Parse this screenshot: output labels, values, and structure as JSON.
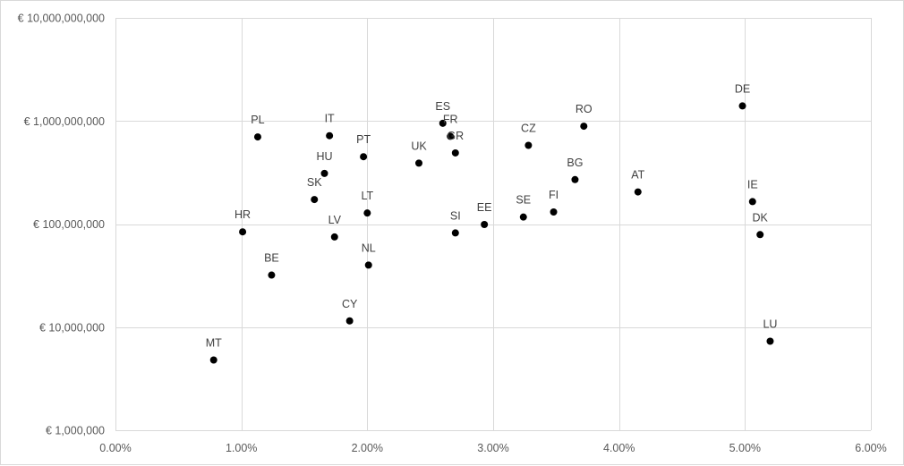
{
  "chart_data": {
    "type": "scatter",
    "title": "",
    "xlabel": "",
    "ylabel": "",
    "x_scale": "linear",
    "y_scale": "log",
    "xlim": [
      0.0,
      0.06
    ],
    "ylim": [
      1000000,
      10000000000
    ],
    "grid": true,
    "legend": "none",
    "x_ticks": [
      "0.00%",
      "1.00%",
      "2.00%",
      "3.00%",
      "4.00%",
      "5.00%",
      "6.00%"
    ],
    "x_tick_values": [
      0.0,
      0.01,
      0.02,
      0.03,
      0.04,
      0.05,
      0.06
    ],
    "y_ticks": [
      "€ 1,000,000",
      "€ 10,000,000",
      "€ 100,000,000",
      "€ 1,000,000,000",
      "€ 10,000,000,000"
    ],
    "y_tick_values": [
      1000000,
      10000000,
      100000000,
      1000000000,
      10000000000
    ],
    "colors": {
      "marker": "#000000",
      "grid": "#d9d9d9",
      "label": "#404040"
    },
    "points": [
      {
        "label": "MT",
        "x": 0.0078,
        "y": 4800000
      },
      {
        "label": "HR",
        "x": 0.0101,
        "y": 84000000
      },
      {
        "label": "PL",
        "x": 0.0113,
        "y": 700000000
      },
      {
        "label": "BE",
        "x": 0.0124,
        "y": 32000000
      },
      {
        "label": "SK",
        "x": 0.0158,
        "y": 173000000
      },
      {
        "label": "HU",
        "x": 0.0166,
        "y": 310000000
      },
      {
        "label": "IT",
        "x": 0.017,
        "y": 720000000
      },
      {
        "label": "LV",
        "x": 0.0174,
        "y": 75000000
      },
      {
        "label": "CY",
        "x": 0.0186,
        "y": 11500000
      },
      {
        "label": "PT",
        "x": 0.0197,
        "y": 450000000
      },
      {
        "label": "LT",
        "x": 0.02,
        "y": 128000000
      },
      {
        "label": "NL",
        "x": 0.0201,
        "y": 40000000
      },
      {
        "label": "UK",
        "x": 0.0241,
        "y": 390000000
      },
      {
        "label": "ES",
        "x": 0.026,
        "y": 950000000
      },
      {
        "label": "FR",
        "x": 0.0266,
        "y": 710000000
      },
      {
        "label": "GR",
        "x": 0.027,
        "y": 490000000
      },
      {
        "label": "SI",
        "x": 0.027,
        "y": 82000000
      },
      {
        "label": "EE",
        "x": 0.0293,
        "y": 99000000
      },
      {
        "label": "SE",
        "x": 0.0324,
        "y": 117000000
      },
      {
        "label": "CZ",
        "x": 0.0328,
        "y": 580000000
      },
      {
        "label": "FI",
        "x": 0.0348,
        "y": 131000000
      },
      {
        "label": "BG",
        "x": 0.0365,
        "y": 270000000
      },
      {
        "label": "RO",
        "x": 0.0372,
        "y": 890000000
      },
      {
        "label": "AT",
        "x": 0.0415,
        "y": 205000000
      },
      {
        "label": "DE",
        "x": 0.0498,
        "y": 1400000000
      },
      {
        "label": "IE",
        "x": 0.0506,
        "y": 165000000
      },
      {
        "label": "DK",
        "x": 0.0512,
        "y": 79000000
      },
      {
        "label": "LU",
        "x": 0.052,
        "y": 7300000
      }
    ]
  }
}
